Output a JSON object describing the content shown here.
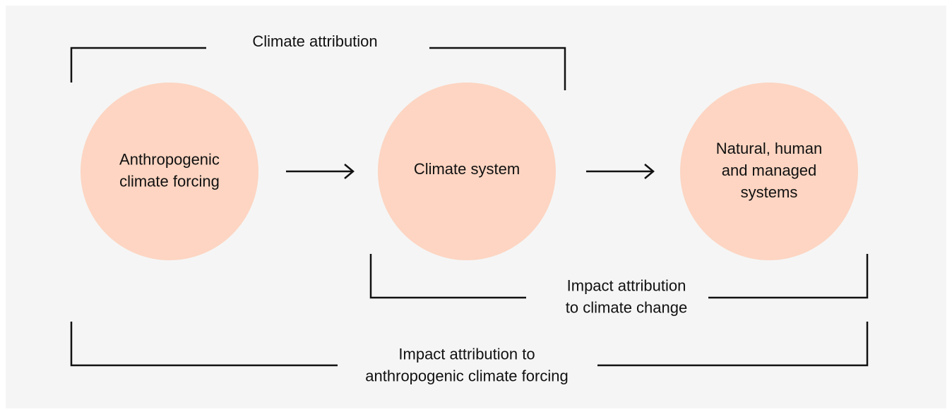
{
  "nodes": [
    {
      "label": [
        "Anthropogenic",
        "climate forcing"
      ]
    },
    {
      "label": [
        "Climate system"
      ]
    },
    {
      "label": [
        "Natural, human",
        "and managed",
        "systems"
      ]
    }
  ],
  "brackets": [
    {
      "label": [
        "Climate attribution"
      ]
    },
    {
      "label": [
        "Impact attribution",
        "to climate change"
      ]
    },
    {
      "label": [
        "Impact attribution to",
        "anthropogenic climate forcing"
      ]
    }
  ]
}
